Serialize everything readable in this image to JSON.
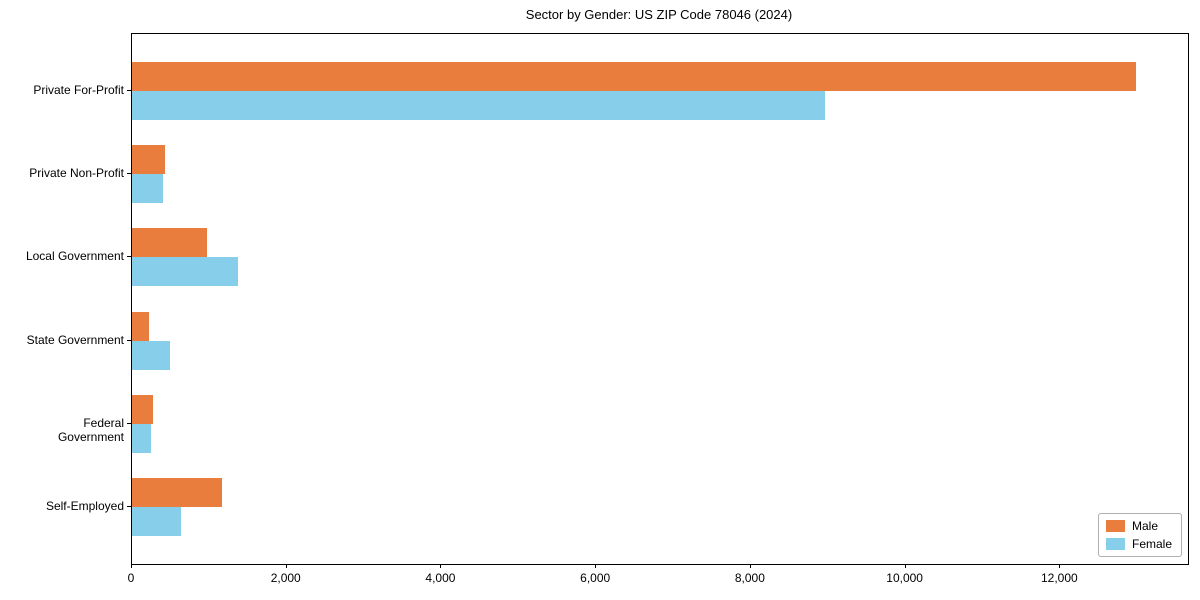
{
  "chart_data": {
    "type": "bar",
    "orientation": "horizontal",
    "title": "Sector by Gender: US ZIP Code 78046 (2024)",
    "xlabel": "",
    "ylabel": "",
    "categories": [
      "Private For-Profit",
      "Private Non-Profit",
      "Local Government",
      "State Government",
      "Federal Government",
      "Self-Employed"
    ],
    "series": [
      {
        "name": "Male",
        "color": "#e87d3d",
        "values": [
          12980,
          430,
          970,
          225,
          275,
          1160
        ]
      },
      {
        "name": "Female",
        "color": "#87ceeb",
        "values": [
          8960,
          400,
          1370,
          495,
          250,
          635
        ]
      }
    ],
    "xlim": [
      0,
      13650
    ],
    "xticks": [
      0,
      2000,
      4000,
      6000,
      8000,
      10000,
      12000
    ],
    "xtick_labels": [
      "0",
      "2,000",
      "4,000",
      "6,000",
      "8,000",
      "10,000",
      "12,000"
    ],
    "grid": false,
    "legend_position": "lower right",
    "plot_background": "#ffffff",
    "spine_color": "#000000"
  }
}
